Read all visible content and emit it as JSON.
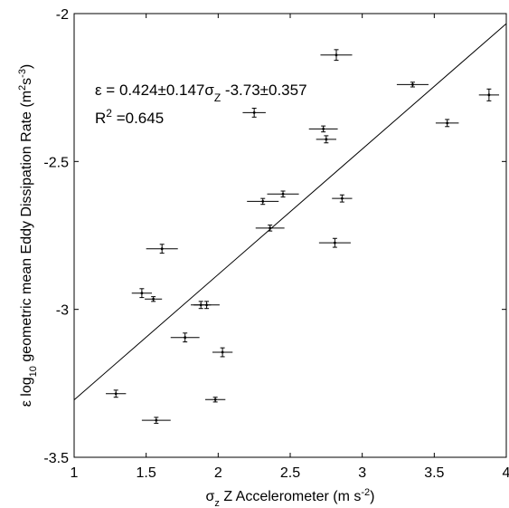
{
  "chart_data": {
    "type": "scatter",
    "xlabel_parts": [
      "σ",
      "z",
      " Z Accelerometer (m s",
      "-2",
      ")"
    ],
    "ylabel_parts": [
      "ε log",
      "10",
      " geometric mean Eddy Dissipation Rate (m",
      "2",
      "s",
      "-3",
      ")"
    ],
    "xlim": [
      1,
      4
    ],
    "ylim": [
      -3.5,
      -2
    ],
    "xticks": [
      1,
      1.5,
      2,
      2.5,
      3,
      3.5,
      4
    ],
    "xtick_labels": [
      "1",
      "1.5",
      "2",
      "2.5",
      "3",
      "3.5",
      "4"
    ],
    "yticks": [
      -3.5,
      -3,
      -2.5,
      -2
    ],
    "ytick_labels": [
      "-3.5",
      "-3",
      "-2.5",
      "-2"
    ],
    "grid": false,
    "annotations": {
      "equation_parts": [
        "ε = 0.424±0.147σ",
        "Z",
        " -3.73±0.357"
      ],
      "r2_parts": [
        "R",
        "2",
        " =0.645"
      ]
    },
    "fit_line": {
      "slope": 0.424,
      "intercept": -3.73
    },
    "points": [
      {
        "x": 1.29,
        "y": -3.285,
        "xerr": 0.07,
        "yerr": 0.012
      },
      {
        "x": 1.47,
        "y": -2.945,
        "xerr": 0.07,
        "yerr": 0.015
      },
      {
        "x": 1.55,
        "y": -2.965,
        "xerr": 0.06,
        "yerr": 0.008
      },
      {
        "x": 1.57,
        "y": -3.375,
        "xerr": 0.1,
        "yerr": 0.01
      },
      {
        "x": 1.61,
        "y": -2.795,
        "xerr": 0.11,
        "yerr": 0.015
      },
      {
        "x": 1.77,
        "y": -3.095,
        "xerr": 0.1,
        "yerr": 0.015
      },
      {
        "x": 1.88,
        "y": -2.985,
        "xerr": 0.07,
        "yerr": 0.012
      },
      {
        "x": 1.92,
        "y": -2.985,
        "xerr": 0.09,
        "yerr": 0.012
      },
      {
        "x": 1.98,
        "y": -3.305,
        "xerr": 0.07,
        "yerr": 0.008
      },
      {
        "x": 2.03,
        "y": -3.145,
        "xerr": 0.07,
        "yerr": 0.015
      },
      {
        "x": 2.25,
        "y": -2.335,
        "xerr": 0.08,
        "yerr": 0.015
      },
      {
        "x": 2.31,
        "y": -2.635,
        "xerr": 0.11,
        "yerr": 0.01
      },
      {
        "x": 2.36,
        "y": -2.725,
        "xerr": 0.1,
        "yerr": 0.01
      },
      {
        "x": 2.45,
        "y": -2.61,
        "xerr": 0.11,
        "yerr": 0.01
      },
      {
        "x": 2.73,
        "y": -2.39,
        "xerr": 0.1,
        "yerr": 0.01
      },
      {
        "x": 2.75,
        "y": -2.425,
        "xerr": 0.07,
        "yerr": 0.012
      },
      {
        "x": 2.81,
        "y": -2.775,
        "xerr": 0.11,
        "yerr": 0.015
      },
      {
        "x": 2.82,
        "y": -2.14,
        "xerr": 0.11,
        "yerr": 0.018
      },
      {
        "x": 2.86,
        "y": -2.625,
        "xerr": 0.07,
        "yerr": 0.012
      },
      {
        "x": 3.35,
        "y": -2.24,
        "xerr": 0.11,
        "yerr": 0.008
      },
      {
        "x": 3.59,
        "y": -2.37,
        "xerr": 0.08,
        "yerr": 0.012
      },
      {
        "x": 3.88,
        "y": -2.275,
        "xerr": 0.07,
        "yerr": 0.02
      }
    ]
  }
}
